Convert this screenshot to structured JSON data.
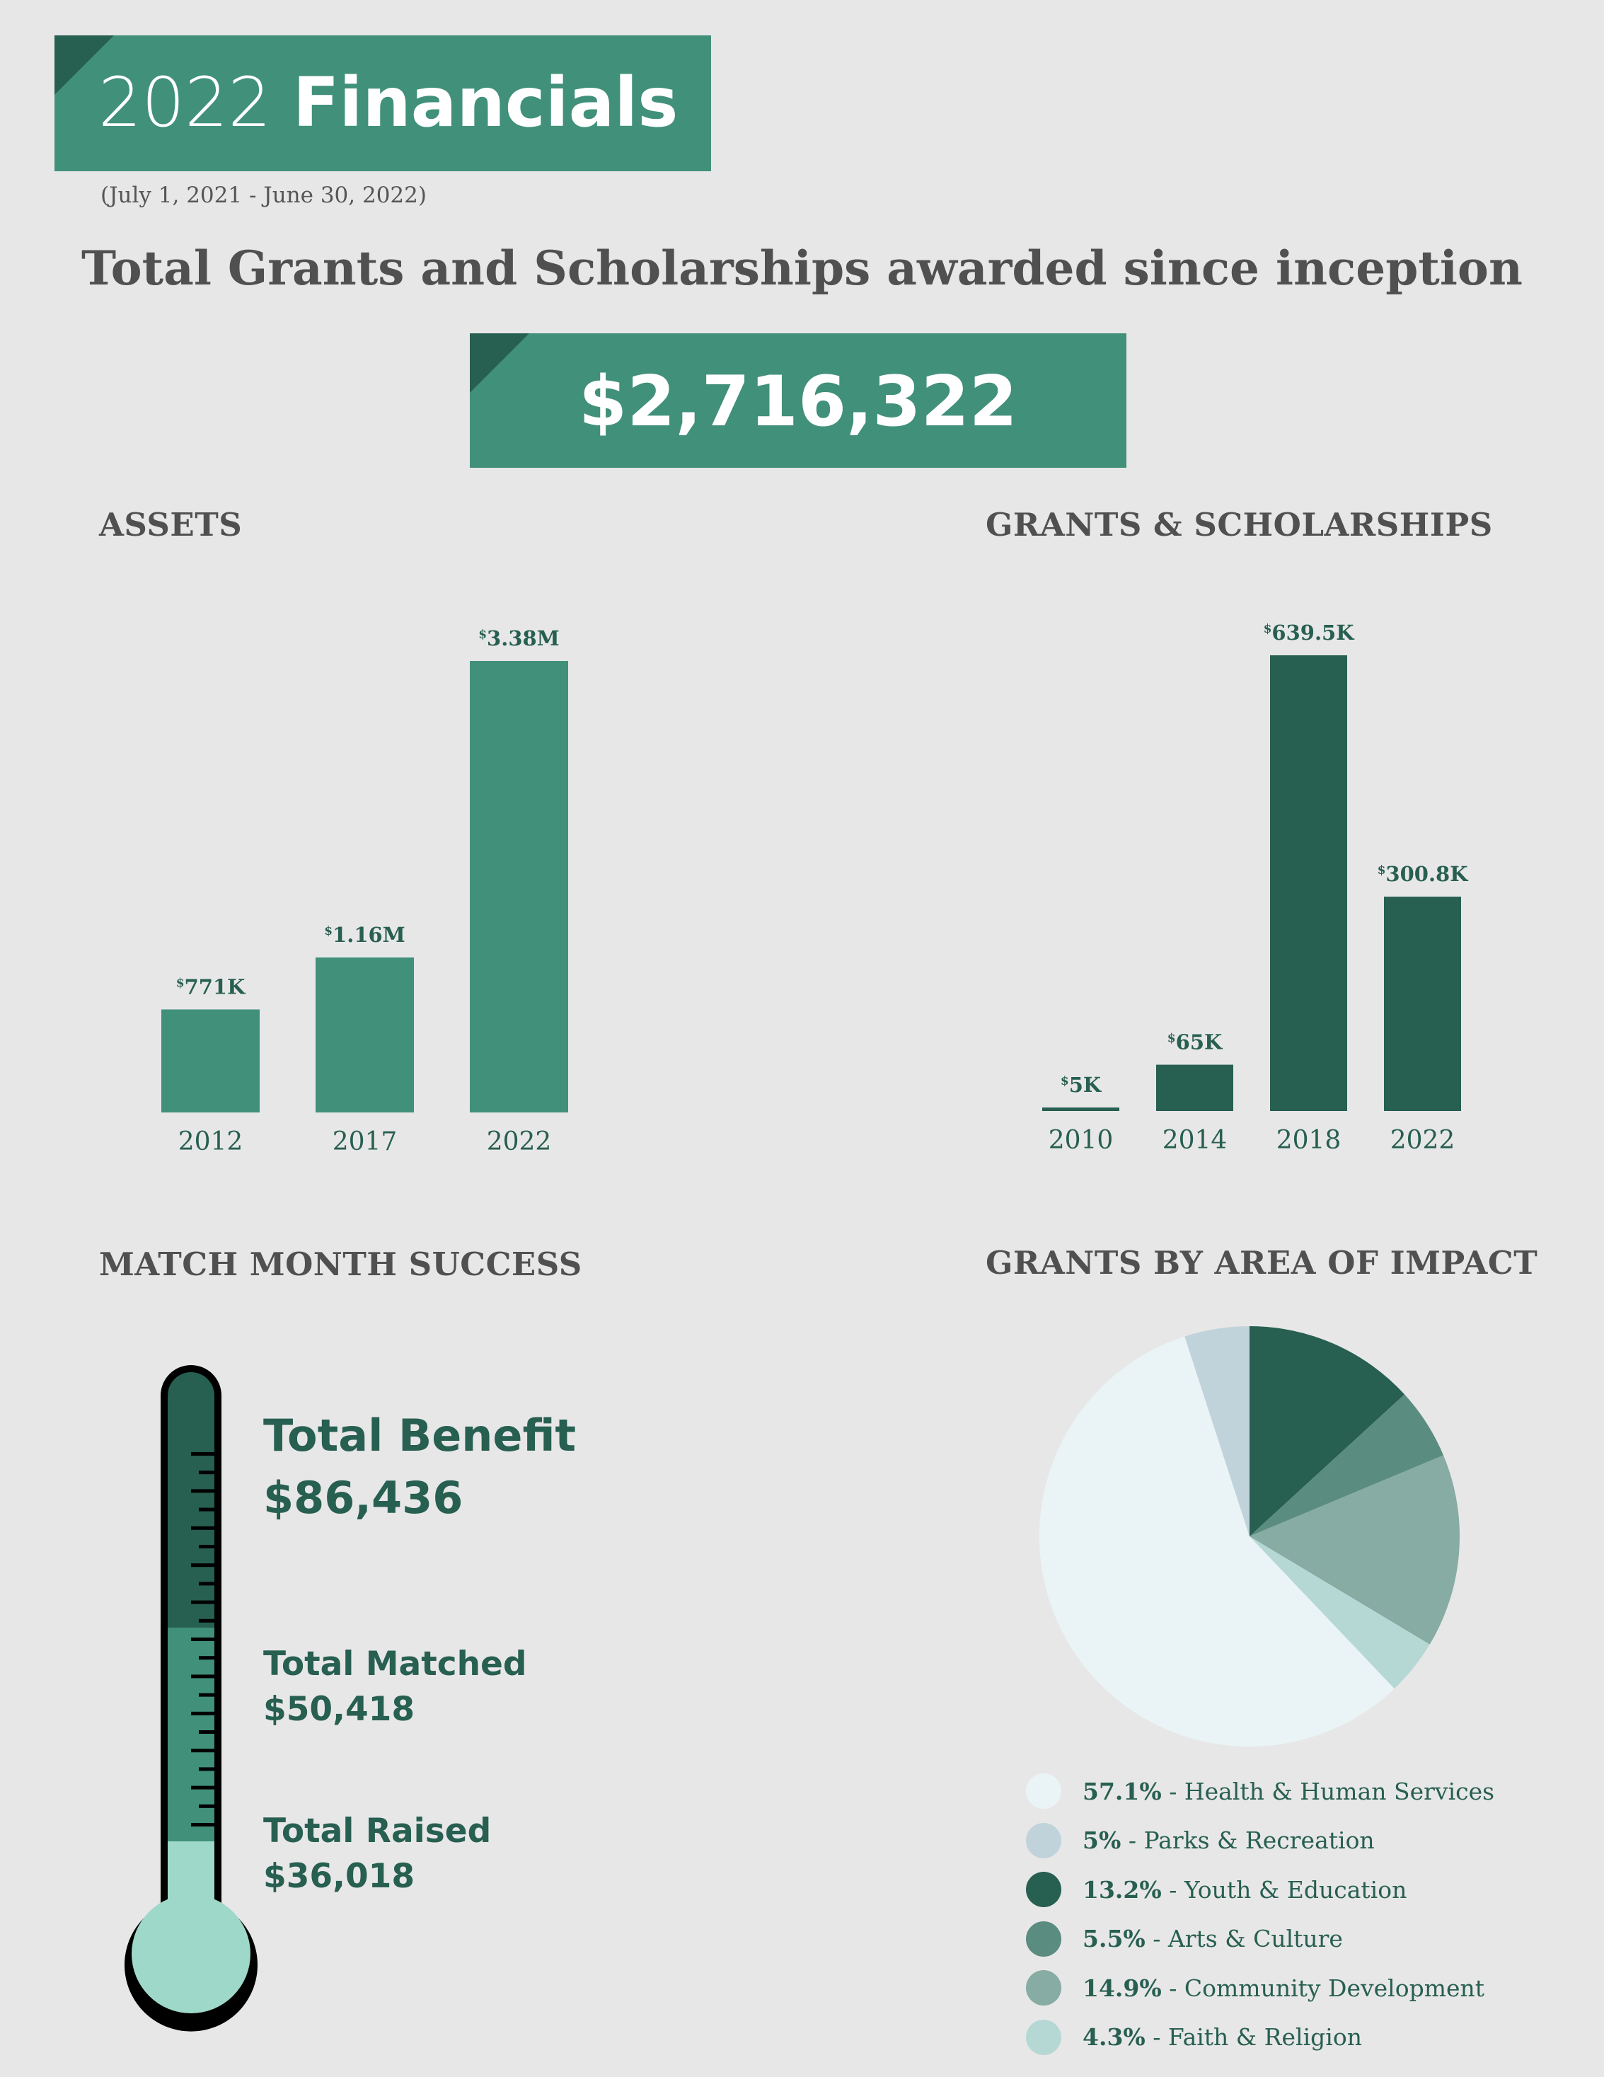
{
  "header": {
    "year": "2022",
    "title_word": "Financials",
    "period": "(July 1, 2021 - June 30, 2022)"
  },
  "headline": "Total Grants and Scholarships awarded since inception",
  "total_amount": "$2,716,322",
  "assets": {
    "title": "ASSETS"
  },
  "grants": {
    "title": "GRANTS & SCHOLARSHIPS"
  },
  "match": {
    "title": "MATCH MONTH SUCCESS",
    "benefit_label": "Total Benefit",
    "benefit_value": "$86,436",
    "matched_label": "Total Matched",
    "matched_value": "$50,418",
    "raised_label": "Total Raised",
    "raised_value": "$36,018"
  },
  "impact": {
    "title": "GRANTS BY AREA OF IMPACT"
  },
  "colors": {
    "primary": "#41907a",
    "dark": "#275f51",
    "text_gray": "#505050",
    "background": "#e8e7e7"
  },
  "chart_data": [
    {
      "type": "bar",
      "title": "ASSETS",
      "categories": [
        "2012",
        "2017",
        "2022"
      ],
      "values": [
        0.771,
        1.16,
        3.38
      ],
      "unit": "M",
      "labels": [
        "771K",
        "1.16M",
        "3.38M"
      ],
      "ylim": [
        0,
        3.38
      ],
      "color": "#41907a"
    },
    {
      "type": "bar",
      "title": "GRANTS & SCHOLARSHIPS",
      "categories": [
        "2010",
        "2014",
        "2018",
        "2022"
      ],
      "values": [
        5,
        65,
        639.5,
        300.8
      ],
      "unit": "K",
      "labels": [
        "5K",
        "65K",
        "639.5K",
        "300.8K"
      ],
      "ylim": [
        0,
        639.5
      ],
      "color": "#275f51"
    },
    {
      "type": "pie",
      "title": "GRANTS BY AREA OF IMPACT",
      "slices": [
        {
          "label": "Youth & Education",
          "pct": "13.2%",
          "value": 13.2,
          "color": "#275f51"
        },
        {
          "label": "Arts & Culture",
          "pct": "5.5%",
          "value": 5.5,
          "color": "#5a8c80"
        },
        {
          "label": "Community Development",
          "pct": "14.9%",
          "value": 14.9,
          "color": "#86aca3"
        },
        {
          "label": "Faith & Religion",
          "pct": "4.3%",
          "value": 4.3,
          "color": "#b6d8d5"
        },
        {
          "label": "Health & Human Services",
          "pct": "57.1%",
          "value": 57.1,
          "color": "#eaf4f6"
        },
        {
          "label": "Parks & Recreation",
          "pct": "5%",
          "value": 5,
          "color": "#c1d3da"
        }
      ],
      "legend": [
        {
          "pct": "57.1%",
          "label": " - Health & Human Services",
          "color": "#eaf4f6"
        },
        {
          "pct": "5%",
          "label": " - Parks & Recreation",
          "color": "#c1d3da"
        },
        {
          "pct": "13.2%",
          "label": " - Youth & Education",
          "color": "#275f51"
        },
        {
          "pct": "5.5%",
          "label": " - Arts & Culture",
          "color": "#5a8c80"
        },
        {
          "pct": "14.9%",
          "label": " - Community Development",
          "color": "#86aca3"
        },
        {
          "pct": "4.3%",
          "label": " - Faith & Religion",
          "color": "#b6d8d5"
        }
      ],
      "legend_position": "bottom"
    }
  ]
}
